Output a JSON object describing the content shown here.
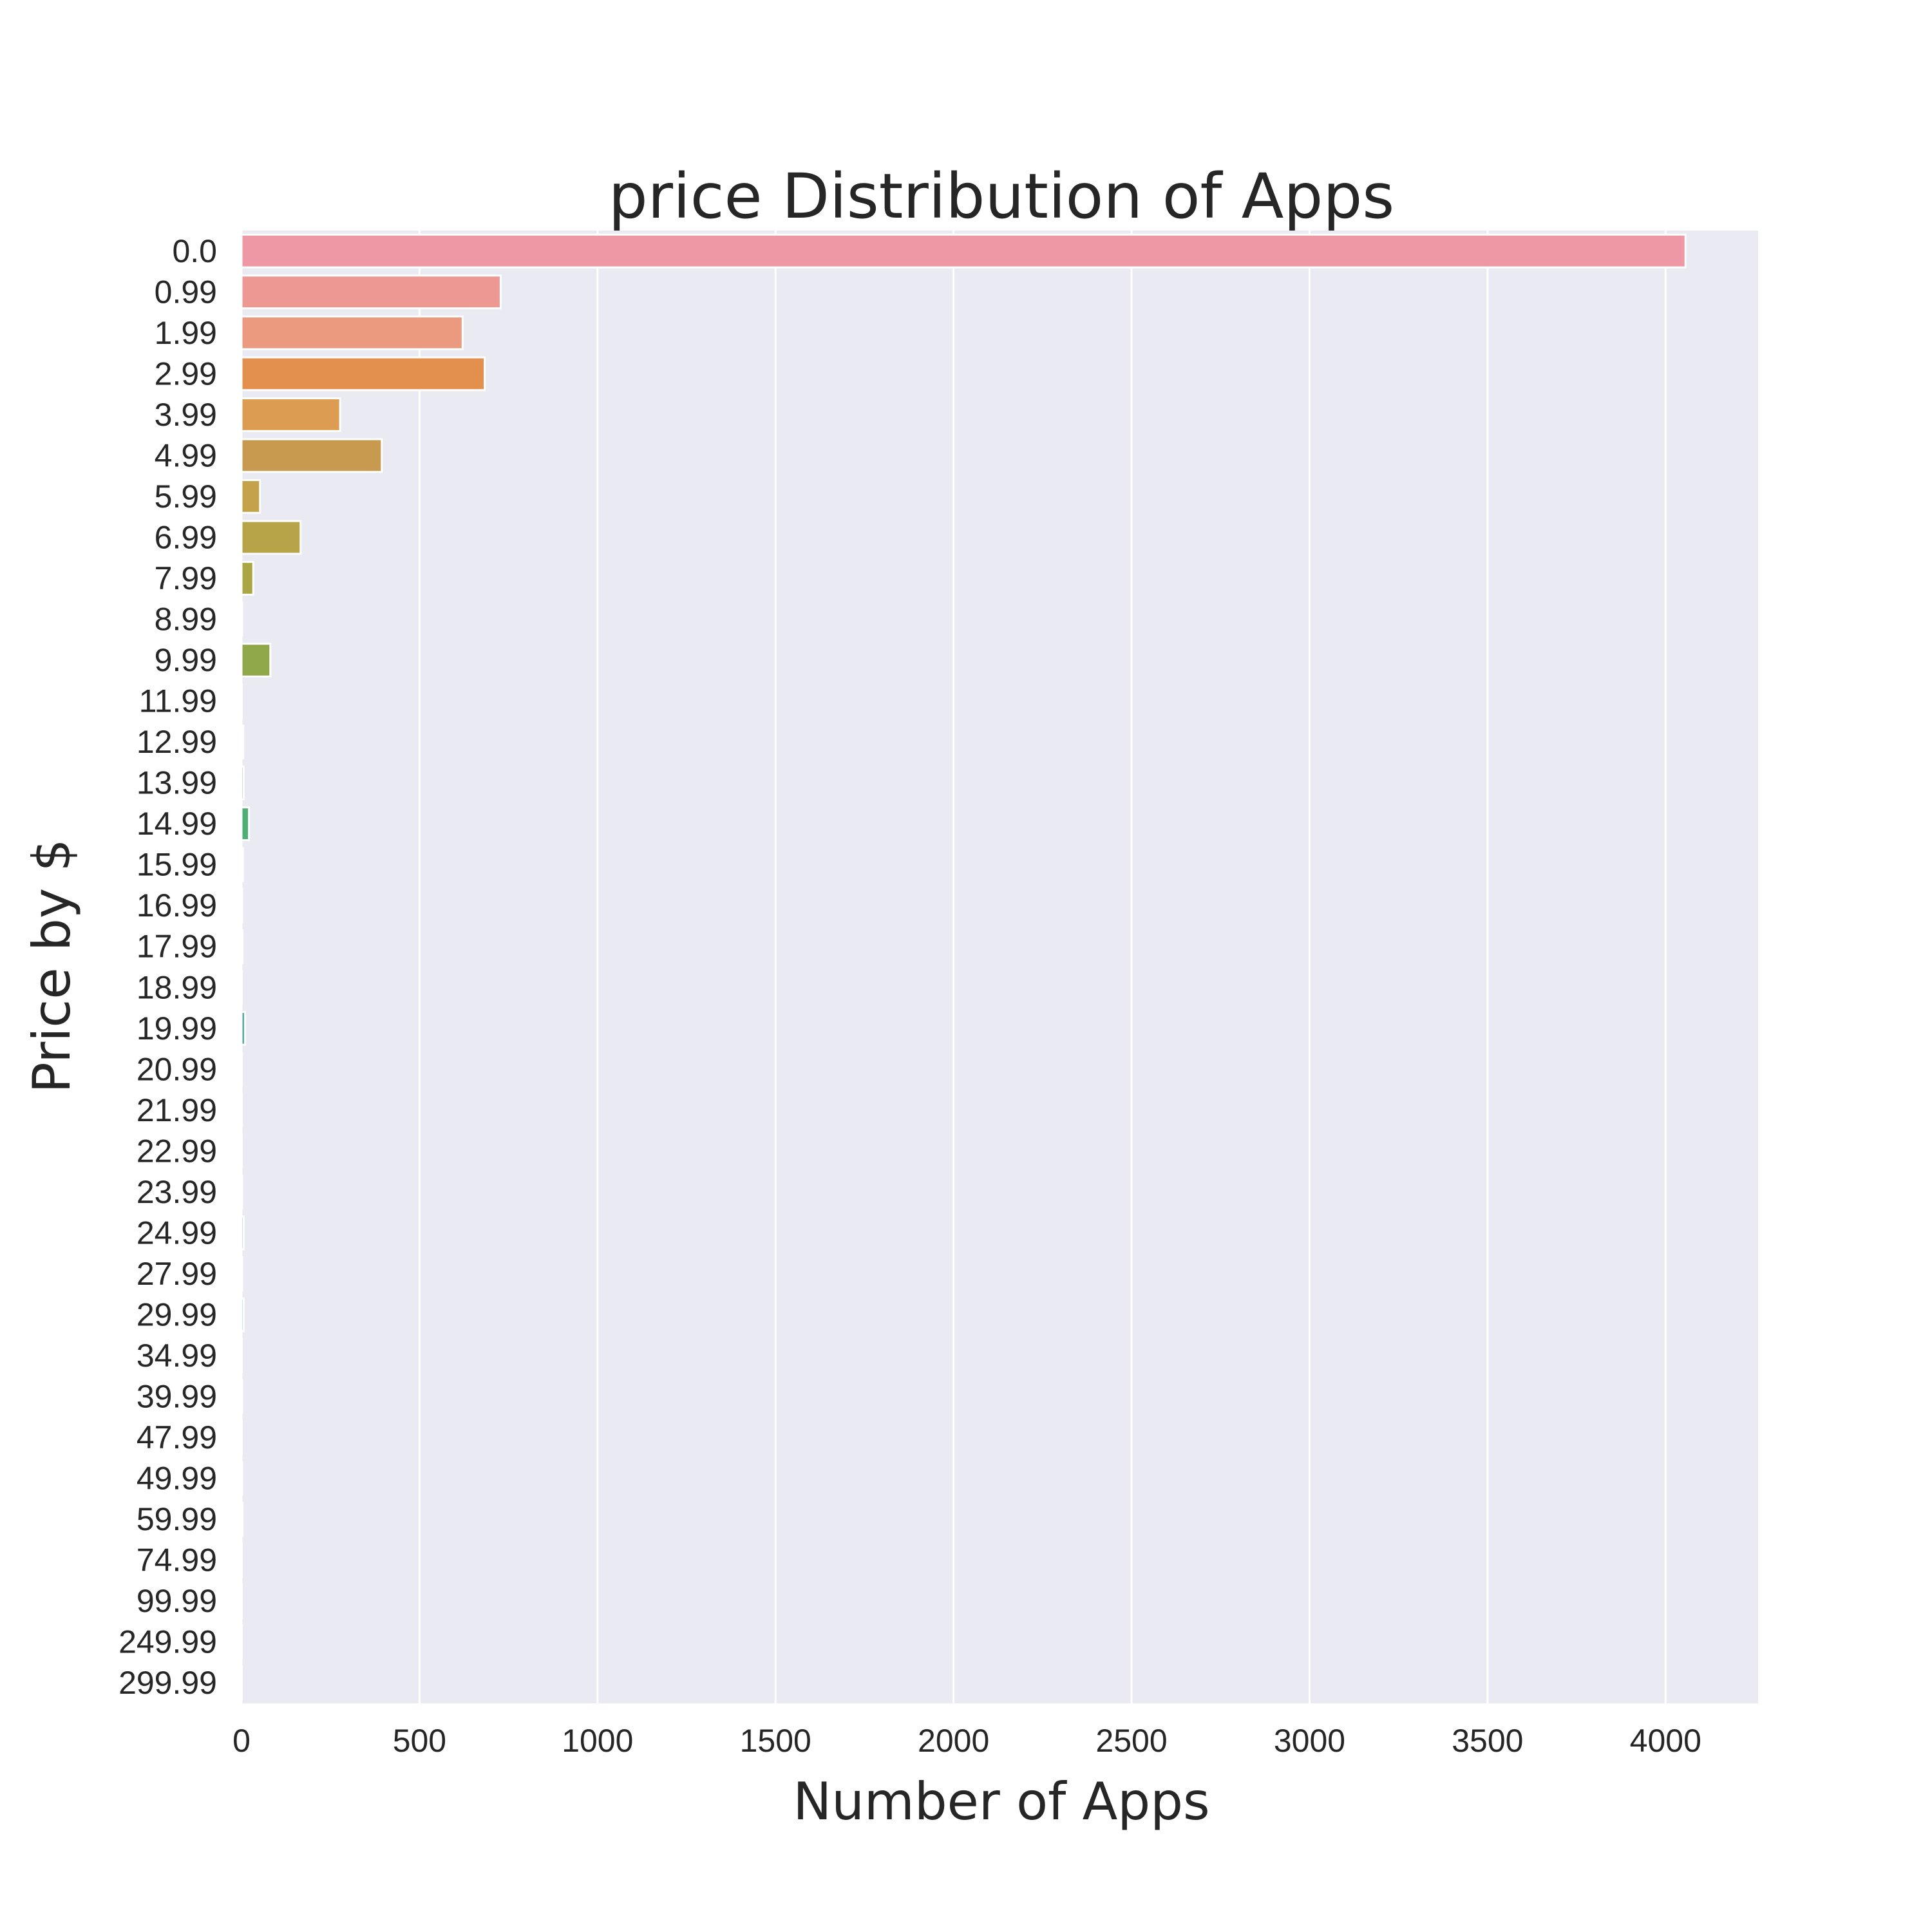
{
  "chart_data": {
    "type": "bar",
    "orientation": "horizontal",
    "title": "price Distribution of Apps",
    "xlabel": "Number of Apps",
    "ylabel": "Price by $",
    "xlim": [
      0,
      4260
    ],
    "xticks": [
      0,
      500,
      1000,
      1500,
      2000,
      2500,
      3000,
      3500,
      4000
    ],
    "grid": true,
    "categories": [
      "0.0",
      "0.99",
      "1.99",
      "2.99",
      "3.99",
      "4.99",
      "5.99",
      "6.99",
      "7.99",
      "8.99",
      "9.99",
      "11.99",
      "12.99",
      "13.99",
      "14.99",
      "15.99",
      "16.99",
      "17.99",
      "18.99",
      "19.99",
      "20.99",
      "21.99",
      "22.99",
      "23.99",
      "24.99",
      "27.99",
      "29.99",
      "34.99",
      "39.99",
      "47.99",
      "49.99",
      "59.99",
      "74.99",
      "99.99",
      "249.99",
      "299.99"
    ],
    "values": [
      4056,
      728,
      621,
      683,
      277,
      394,
      52,
      166,
      33,
      2,
      81,
      1,
      5,
      6,
      21,
      4,
      2,
      3,
      1,
      10,
      1,
      1,
      1,
      2,
      6,
      2,
      6,
      1,
      2,
      1,
      2,
      3,
      1,
      1,
      1,
      1
    ],
    "colors": [
      "#ee98a5",
      "#ee9893",
      "#ec9a7f",
      "#e3904e",
      "#dc9c52",
      "#c79a4f",
      "#c3a24a",
      "#b7a448",
      "#aaa645",
      "#a1a843",
      "#8fa94a",
      "#79ab53",
      "#6fac5a",
      "#65ad61",
      "#4eaf74",
      "#4fae82",
      "#50ad8c",
      "#51ad94",
      "#52ad9c",
      "#54aca6",
      "#55acad",
      "#57abb6",
      "#59abbe",
      "#5baac7",
      "#5ea8d1",
      "#67a6db",
      "#7aa2e5",
      "#8b9de8",
      "#a297ea",
      "#b690ea",
      "#c68be8",
      "#d585e3",
      "#e382db",
      "#ec83d1",
      "#f086c4",
      "#f38cb6"
    ],
    "background": "#eaeaf2",
    "grid_color": "#ffffff"
  }
}
